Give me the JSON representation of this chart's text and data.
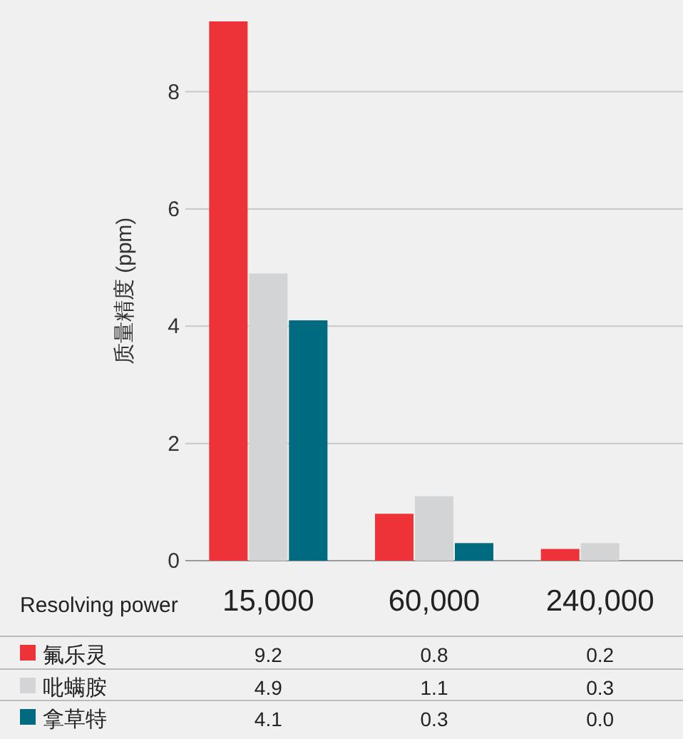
{
  "chart_data": {
    "type": "bar",
    "xlabel": "Resolving power",
    "ylabel": "质量精度 (ppm)",
    "categories": [
      "15,000",
      "60,000",
      "240,000"
    ],
    "series": [
      {
        "name": "氟乐灵",
        "color": "#ee3338",
        "values": [
          9.2,
          0.8,
          0.2
        ],
        "value_labels": [
          "9.2",
          "0.8",
          "0.2"
        ]
      },
      {
        "name": "吡螨胺",
        "color": "#d3d4d6",
        "values": [
          4.9,
          1.1,
          0.3
        ],
        "value_labels": [
          "4.9",
          "1.1",
          "0.3"
        ]
      },
      {
        "name": "拿草特",
        "color": "#006b80",
        "values": [
          4.1,
          0.3,
          0.0
        ],
        "value_labels": [
          "4.1",
          "0.3",
          "0.0"
        ]
      }
    ],
    "ylim": [
      0,
      9.2
    ],
    "yticks": [
      0,
      2,
      4,
      6,
      8
    ],
    "grid": "y",
    "legend": "bottom"
  }
}
